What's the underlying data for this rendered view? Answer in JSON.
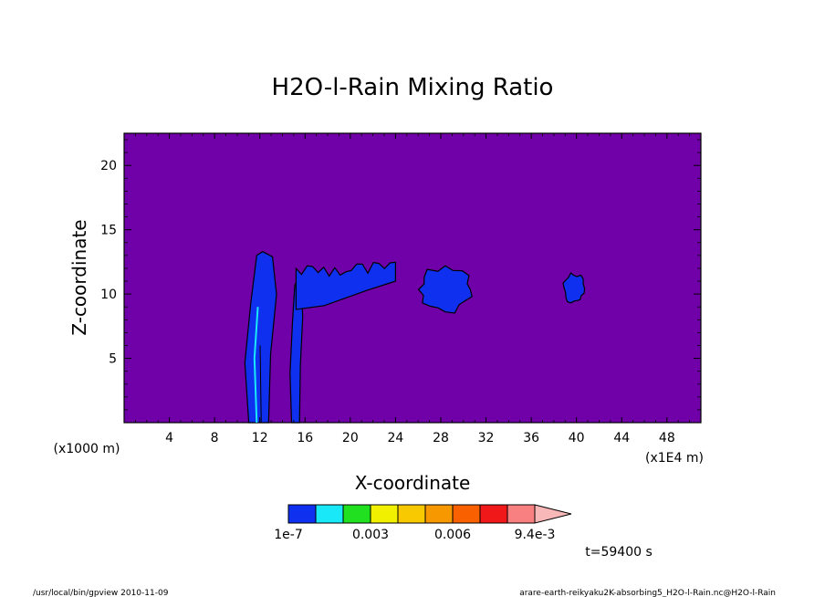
{
  "chart_data": {
    "type": "heatmap",
    "title": "H2O-l-Rain Mixing Ratio",
    "xlabel": "X-coordinate",
    "ylabel": "Z-coordinate",
    "x_unit_label": "(x1E4 m)",
    "y_unit_label": "(x1000 m)",
    "xlim": [
      0,
      51
    ],
    "ylim": [
      0,
      22.5
    ],
    "x_ticks": [
      4,
      8,
      12,
      16,
      20,
      24,
      28,
      32,
      36,
      40,
      44,
      48
    ],
    "y_ticks": [
      5,
      10,
      15,
      20
    ],
    "time_label": "t=59400 s",
    "background_color": "#7000a8",
    "colorbar": {
      "colors": [
        "#1030f0",
        "#18e8f8",
        "#20e020",
        "#f0f000",
        "#f8c800",
        "#f89800",
        "#f86000",
        "#f01818",
        "#f88080",
        "#f8b8b8"
      ],
      "tick_labels": [
        "1e-7",
        "0.003",
        "0.006",
        "9.4e-3"
      ]
    },
    "features": [
      {
        "shape": "tower",
        "x": [
          10.5,
          14.0
        ],
        "z": [
          0,
          13.3
        ]
      },
      {
        "shape": "tower",
        "x": [
          14.6,
          16.0
        ],
        "z": [
          0,
          11.0
        ]
      },
      {
        "shape": "anvil",
        "x": [
          15.2,
          24.0
        ],
        "z": [
          8.5,
          12.5
        ]
      },
      {
        "shape": "cell",
        "x": [
          25.8,
          31.0
        ],
        "z": [
          8.5,
          12.2
        ]
      },
      {
        "shape": "cell",
        "x": [
          38.8,
          40.8
        ],
        "z": [
          9.2,
          11.7
        ]
      }
    ]
  },
  "footer": {
    "left": "/usr/local/bin/gpview  2010-11-09",
    "right": "arare-earth-reikyaku2K-absorbing5_H2O-l-Rain.nc@H2O-l-Rain"
  }
}
